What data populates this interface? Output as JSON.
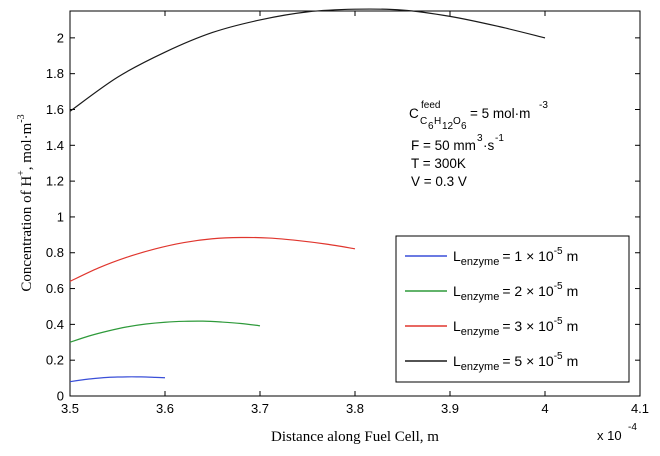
{
  "chart_data": {
    "type": "line",
    "xlabel": "Distance along Fuel Cell, m",
    "ylabel_main": "Concentration of H",
    "ylabel_sup": "+",
    "ylabel_unit": ", mol·m",
    "ylabel_unit_sup": "-3",
    "x_multiplier": "x 10",
    "x_multiplier_exp": "-4",
    "xlim": [
      3.5,
      4.1
    ],
    "ylim": [
      0,
      2.15
    ],
    "x_ticks": [
      "3.5",
      "3.6",
      "3.7",
      "3.8",
      "3.9",
      "4",
      "4.1"
    ],
    "y_ticks": [
      "0",
      "0.2",
      "0.4",
      "0.6",
      "0.8",
      "1",
      "1.2",
      "1.4",
      "1.6",
      "1.8",
      "2"
    ],
    "annotations": {
      "feed_prefix": "C",
      "feed_sup": "feed",
      "feed_sub": "C  H   O",
      "feed_sub_6a": "6",
      "feed_sub_12": "12",
      "feed_sub_6b": "6",
      "feed_value": "= 5 mol·m",
      "feed_value_sup": "-3",
      "flow": "F = 50 mm",
      "flow_sup": "3",
      "flow_suffix": "·s",
      "flow_suffix_sup": "-1",
      "temperature": "T = 300K",
      "voltage": "V = 0.3 V"
    },
    "legend_placement": "lower-right",
    "series": [
      {
        "name": "L",
        "name_sub": "enzyme",
        "name_rest": "= 1 × 10",
        "name_sup": "-5",
        "name_unit": "m",
        "color": "#3a4fd8",
        "x": [
          3.5,
          3.51,
          3.52,
          3.53,
          3.54,
          3.55,
          3.56,
          3.57,
          3.58,
          3.59,
          3.6
        ],
        "y": [
          0.08,
          0.088,
          0.095,
          0.1,
          0.104,
          0.106,
          0.107,
          0.107,
          0.106,
          0.104,
          0.102
        ]
      },
      {
        "name": "L",
        "name_sub": "enzyme",
        "name_rest": "= 2 × 10",
        "name_sup": "-5",
        "name_unit": "m",
        "color": "#2e9a3a",
        "x": [
          3.5,
          3.52,
          3.54,
          3.56,
          3.58,
          3.6,
          3.62,
          3.64,
          3.66,
          3.68,
          3.7
        ],
        "y": [
          0.3,
          0.335,
          0.363,
          0.386,
          0.402,
          0.412,
          0.417,
          0.418,
          0.413,
          0.405,
          0.392
        ]
      },
      {
        "name": "L",
        "name_sub": "enzyme",
        "name_rest": "= 3 × 10",
        "name_sup": "-5",
        "name_unit": "m",
        "color": "#e0362e",
        "x": [
          3.5,
          3.53,
          3.56,
          3.59,
          3.62,
          3.65,
          3.68,
          3.71,
          3.74,
          3.77,
          3.8
        ],
        "y": [
          0.64,
          0.715,
          0.775,
          0.822,
          0.857,
          0.878,
          0.885,
          0.882,
          0.868,
          0.848,
          0.822
        ]
      },
      {
        "name": "L",
        "name_sub": "enzyme",
        "name_rest": "= 5 × 10",
        "name_sup": "-5",
        "name_unit": "m",
        "color": "#1a1a1a",
        "x": [
          3.5,
          3.55,
          3.6,
          3.65,
          3.7,
          3.75,
          3.8,
          3.85,
          3.9,
          3.95,
          4.0
        ],
        "y": [
          1.59,
          1.78,
          1.92,
          2.03,
          2.1,
          2.145,
          2.16,
          2.155,
          2.12,
          2.065,
          2.0
        ]
      }
    ]
  }
}
